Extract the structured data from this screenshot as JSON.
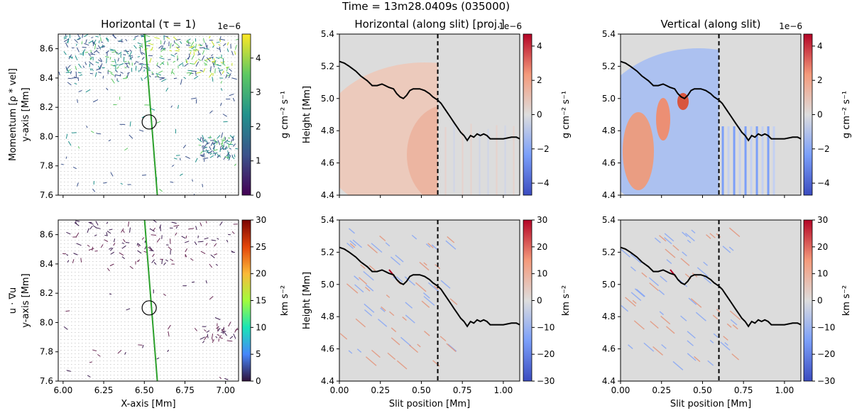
{
  "figure": {
    "suptitle": "Time = 13m28.0409s (035000)"
  },
  "chart_data": [
    {
      "type": "heatmap",
      "panel": "top-left",
      "title": "Horizontal (τ = 1)",
      "ylabel_row": "Momentum [ρ * vel]",
      "ylabel": "y-axis [Mm]",
      "xlabel": "",
      "xlim": [
        5.97,
        7.08
      ],
      "ylim": [
        7.6,
        8.7
      ],
      "yticks": [
        "7.6",
        "7.8",
        "8.0",
        "8.2",
        "8.4",
        "8.6"
      ],
      "colorbar": {
        "ticks": [
          "0",
          "1",
          "2",
          "3",
          "4"
        ],
        "min": 0,
        "max": 4.7,
        "offset": "1e−6",
        "label": "g cm⁻² s⁻¹",
        "cmap": "viridis"
      },
      "slit_line": {
        "x0": 6.5,
        "y0": 8.72,
        "x1": 6.58,
        "y1": 7.6,
        "color": "#2ca02c"
      },
      "marker": {
        "x": 6.53,
        "y": 8.1
      }
    },
    {
      "type": "heatmap",
      "panel": "top-center",
      "title": "Horizontal (along slit) [proj.]",
      "xlabel": "",
      "ylabel": "Height [Mm]",
      "xlim": [
        0,
        1.1
      ],
      "ylim": [
        4.4,
        5.4
      ],
      "yticks": [
        "4.4",
        "4.6",
        "4.8",
        "5.0",
        "5.2",
        "5.4"
      ],
      "colorbar": {
        "ticks": [
          "−4",
          "−2",
          "0",
          "2",
          "4"
        ],
        "min": -4.7,
        "max": 4.7,
        "offset": "1e−6",
        "label": "g cm⁻² s⁻¹",
        "cmap": "coolwarm"
      },
      "dashed_x": 0.6
    },
    {
      "type": "heatmap",
      "panel": "top-right",
      "title": "Vertical (along slit)",
      "xlabel": "",
      "ylabel": "",
      "xlim": [
        0,
        1.1
      ],
      "ylim": [
        4.4,
        5.4
      ],
      "yticks": [
        "4.4",
        "4.6",
        "4.8",
        "5.0",
        "5.2",
        "5.4"
      ],
      "colorbar": {
        "ticks": [
          "−4",
          "−2",
          "0",
          "2",
          "4"
        ],
        "min": -4.7,
        "max": 4.7,
        "offset": "1e−6",
        "label": "g cm⁻² s⁻¹",
        "cmap": "coolwarm"
      },
      "dashed_x": 0.6
    },
    {
      "type": "heatmap",
      "panel": "bottom-left",
      "title": "",
      "ylabel_row": "u · ∇u",
      "ylabel": "y-axis [Mm]",
      "xlabel": "X-axis [Mm]",
      "xlim": [
        5.97,
        7.08
      ],
      "ylim": [
        7.6,
        8.7
      ],
      "xticks": [
        "6.00",
        "6.25",
        "6.50",
        "6.75",
        "7.00"
      ],
      "yticks": [
        "7.6",
        "7.8",
        "8.0",
        "8.2",
        "8.4",
        "8.6"
      ],
      "colorbar": {
        "ticks": [
          "0",
          "5",
          "10",
          "15",
          "20",
          "25",
          "30"
        ],
        "min": 0,
        "max": 30,
        "offset": "",
        "label": "km s⁻²",
        "cmap": "turbo"
      },
      "slit_line": {
        "x0": 6.5,
        "y0": 8.72,
        "x1": 6.58,
        "y1": 7.6,
        "color": "#2ca02c"
      },
      "marker": {
        "x": 6.53,
        "y": 8.1
      }
    },
    {
      "type": "heatmap",
      "panel": "bottom-center",
      "title": "",
      "xlabel": "Slit position [Mm]",
      "ylabel": "Height [Mm]",
      "xlim": [
        0,
        1.1
      ],
      "ylim": [
        4.4,
        5.4
      ],
      "xticks": [
        "0.00",
        "0.25",
        "0.50",
        "0.75",
        "1.00"
      ],
      "yticks": [
        "4.4",
        "4.6",
        "4.8",
        "5.0",
        "5.2",
        "5.4"
      ],
      "colorbar": {
        "ticks": [
          "−30",
          "−20",
          "−10",
          "0",
          "10",
          "20",
          "30"
        ],
        "min": -30,
        "max": 30,
        "offset": "",
        "label": "km s⁻²",
        "cmap": "coolwarm"
      },
      "dashed_x": 0.6
    },
    {
      "type": "heatmap",
      "panel": "bottom-right",
      "title": "",
      "xlabel": "Slit position [Mm]",
      "ylabel": "",
      "xlim": [
        0,
        1.1
      ],
      "ylim": [
        4.4,
        5.4
      ],
      "xticks": [
        "0.00",
        "0.25",
        "0.50",
        "0.75",
        "1.00"
      ],
      "yticks": [
        "4.4",
        "4.6",
        "4.8",
        "5.0",
        "5.2",
        "5.4"
      ],
      "colorbar": {
        "ticks": [
          "−30",
          "−20",
          "−10",
          "0",
          "10",
          "20",
          "30"
        ],
        "min": -30,
        "max": 30,
        "offset": "",
        "label": "km s⁻²",
        "cmap": "coolwarm"
      },
      "dashed_x": 0.6
    }
  ],
  "tau1_profile": {
    "x": [
      0.0,
      0.03,
      0.06,
      0.1,
      0.13,
      0.17,
      0.2,
      0.23,
      0.26,
      0.28,
      0.3,
      0.33,
      0.35,
      0.37,
      0.39,
      0.41,
      0.43,
      0.45,
      0.47,
      0.49,
      0.52,
      0.55,
      0.57,
      0.6,
      0.62,
      0.64,
      0.66,
      0.68,
      0.7,
      0.72,
      0.74,
      0.76,
      0.78,
      0.8,
      0.82,
      0.84,
      0.86,
      0.88,
      0.9,
      0.92,
      0.95,
      1.0,
      1.05,
      1.08,
      1.1
    ],
    "y": [
      5.23,
      5.22,
      5.2,
      5.17,
      5.14,
      5.11,
      5.08,
      5.08,
      5.09,
      5.08,
      5.07,
      5.06,
      5.03,
      5.01,
      5.0,
      5.02,
      5.05,
      5.06,
      5.06,
      5.06,
      5.05,
      5.03,
      5.01,
      4.99,
      4.97,
      4.94,
      4.91,
      4.88,
      4.85,
      4.82,
      4.79,
      4.77,
      4.74,
      4.77,
      4.76,
      4.78,
      4.77,
      4.78,
      4.77,
      4.75,
      4.75,
      4.75,
      4.76,
      4.76,
      4.75
    ]
  }
}
